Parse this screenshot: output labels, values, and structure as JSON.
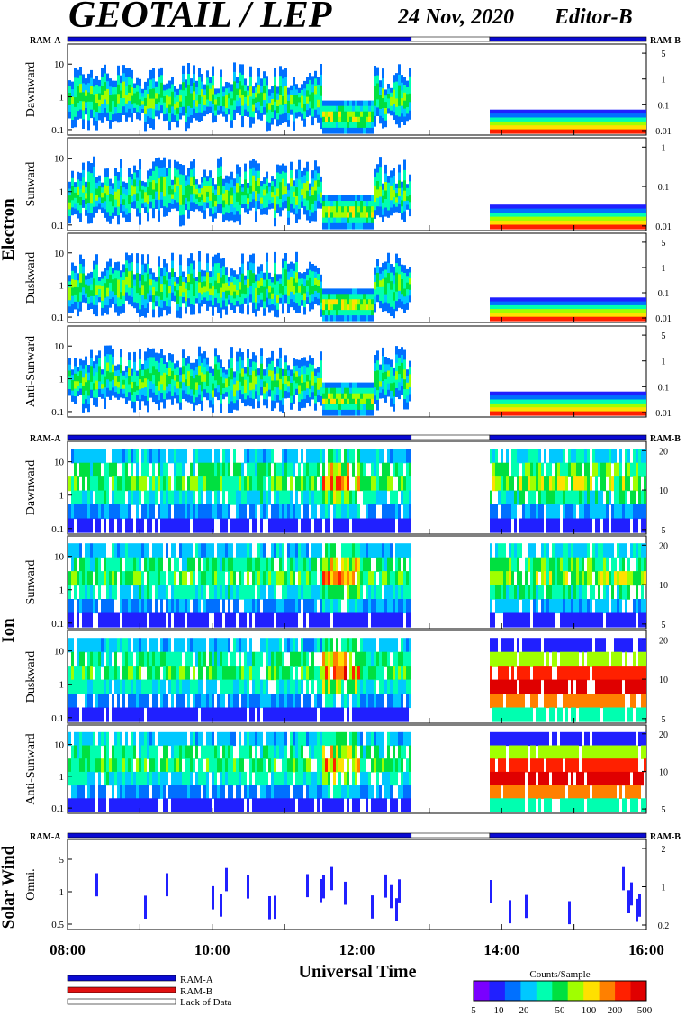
{
  "header": {
    "title": "GEOTAIL / LEP",
    "date": "24 Nov, 2020",
    "editor": "Editor-B"
  },
  "colors": {
    "ram_a": "#0a0ad2",
    "ram_b": "#e01010",
    "lack": "#ffffff",
    "colorbar": [
      "#7a00ff",
      "#2020ff",
      "#0070ff",
      "#00c8ff",
      "#00ffb0",
      "#00e040",
      "#a0ff00",
      "#ffe000",
      "#ff8000",
      "#ff2000",
      "#e00000"
    ]
  },
  "labels": {
    "ram_a": "RAM-A",
    "ram_b": "RAM-B",
    "lack": "Lack of Data",
    "xlabel": "Universal Time",
    "counts": "Counts/Sample",
    "electron": "Electron",
    "ion": "Ion",
    "solar_wind": "Solar Wind"
  },
  "colorbar_ticks": [
    "5",
    "10",
    "20",
    "50",
    "100",
    "200",
    "500"
  ],
  "chart_data": {
    "type": "heatmap",
    "x_range": [
      "08:00",
      "16:00"
    ],
    "x_ticks": [
      "08:00",
      "10:00",
      "12:00",
      "14:00",
      "16:00"
    ],
    "data_gaps": [
      [
        "12:45",
        "13:50"
      ]
    ],
    "groups": [
      {
        "name": "Electron",
        "ram_bar": [
          {
            "from": "08:00",
            "to": "12:45",
            "mode": "RAM-A"
          },
          {
            "from": "12:45",
            "to": "13:50",
            "mode": "Lack of Data"
          },
          {
            "from": "13:50",
            "to": "16:00",
            "mode": "RAM-A"
          }
        ],
        "panels": [
          {
            "label": "Dawnward",
            "left_ticks": [
              "10",
              "1",
              "0.1"
            ],
            "right_ticks": [
              "5",
              "1",
              "0.1",
              "0.01"
            ]
          },
          {
            "label": "Sunward",
            "left_ticks": [
              "10",
              "1",
              "0.1"
            ],
            "right_ticks": [
              "1",
              "0.1",
              "0.01"
            ]
          },
          {
            "label": "Duskward",
            "left_ticks": [
              "10",
              "1",
              "0.1"
            ],
            "right_ticks": [
              "5",
              "1",
              "0.1",
              "0.01"
            ]
          },
          {
            "label": "Anti-Sunward",
            "left_ticks": [
              "10",
              "1",
              "0.1"
            ],
            "right_ticks": [
              "5",
              "1",
              "0.1",
              "0.01"
            ]
          }
        ]
      },
      {
        "name": "Ion",
        "ram_bar": [
          {
            "from": "08:00",
            "to": "12:45",
            "mode": "RAM-A"
          },
          {
            "from": "12:45",
            "to": "13:50",
            "mode": "Lack of Data"
          },
          {
            "from": "13:50",
            "to": "16:00",
            "mode": "RAM-A"
          }
        ],
        "panels": [
          {
            "label": "Dawnward",
            "left_ticks": [
              "10",
              "1",
              "0.1"
            ],
            "right_ticks": [
              "20",
              "10",
              "5"
            ]
          },
          {
            "label": "Sunward",
            "left_ticks": [
              "10",
              "1",
              "0.1"
            ],
            "right_ticks": [
              "20",
              "10",
              "5"
            ]
          },
          {
            "label": "Duskward",
            "left_ticks": [
              "10",
              "1",
              "0.1"
            ],
            "right_ticks": [
              "20",
              "10",
              "5"
            ]
          },
          {
            "label": "Anti-Sunward",
            "left_ticks": [
              "10",
              "1",
              "0.1"
            ],
            "right_ticks": [
              "20",
              "10",
              "5"
            ]
          }
        ]
      },
      {
        "name": "Solar Wind",
        "ram_bar": [
          {
            "from": "08:00",
            "to": "12:45",
            "mode": "RAM-A"
          },
          {
            "from": "12:45",
            "to": "13:50",
            "mode": "Lack of Data"
          },
          {
            "from": "13:50",
            "to": "16:00",
            "mode": "RAM-A"
          }
        ],
        "panels": [
          {
            "label": "Omni.",
            "left_ticks": [
              "5",
              "1",
              "0.5"
            ],
            "right_ticks": [
              "2",
              "1",
              "0.2"
            ]
          }
        ]
      }
    ]
  }
}
